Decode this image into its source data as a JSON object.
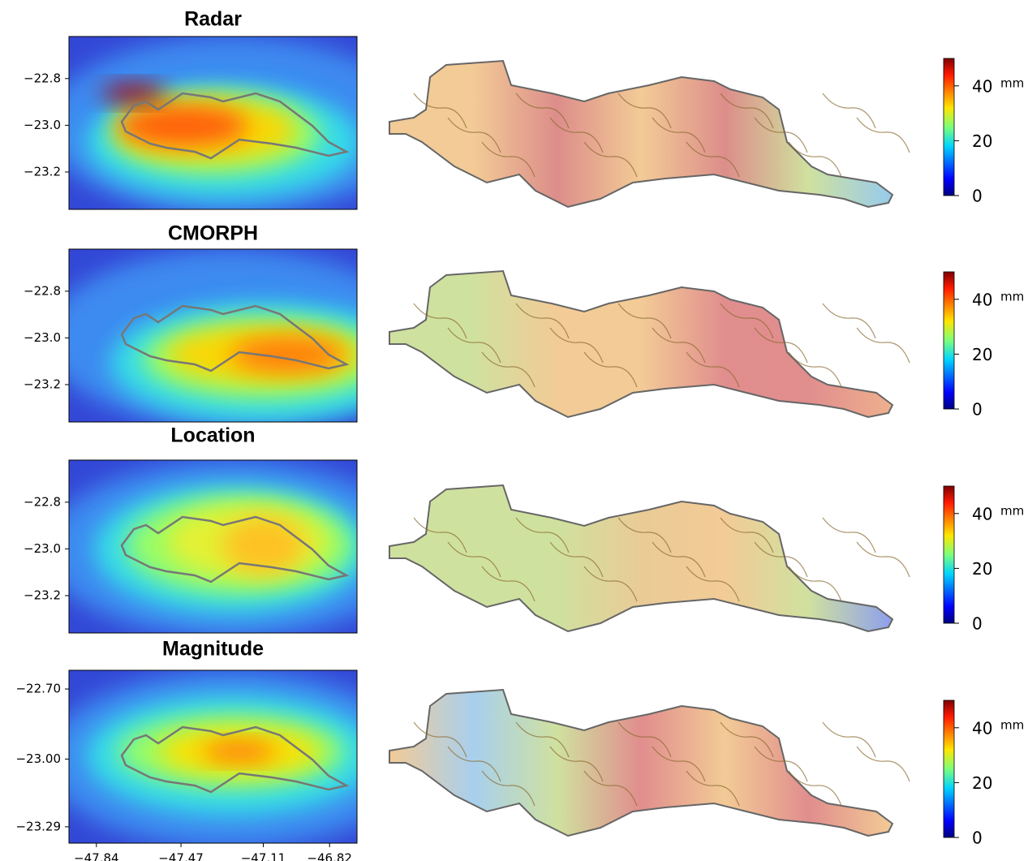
{
  "chart_data": [
    {
      "type": "heatmap",
      "title": "Radar",
      "xlim": [
        -47.96,
        -46.7
      ],
      "ylim": [
        -23.36,
        -22.62
      ],
      "yticks": [
        {
          "value": -22.8,
          "label": "−22.8"
        },
        {
          "value": -23.0,
          "label": "−23.0"
        },
        {
          "value": -23.2,
          "label": "−23.2"
        }
      ],
      "colorbar": {
        "lim": [
          0,
          50
        ],
        "ticks": [
          0,
          20,
          40
        ],
        "label": "mm"
      }
    },
    {
      "type": "heatmap",
      "title": "CMORPH",
      "xlim": [
        -47.96,
        -46.7
      ],
      "ylim": [
        -23.36,
        -22.62
      ],
      "yticks": [
        {
          "value": -22.8,
          "label": "−22.8"
        },
        {
          "value": -23.0,
          "label": "−23.0"
        },
        {
          "value": -23.2,
          "label": "−23.2"
        }
      ],
      "colorbar": {
        "lim": [
          0,
          50
        ],
        "ticks": [
          0,
          20,
          40
        ],
        "label": "mm"
      }
    },
    {
      "type": "heatmap",
      "title": "Location",
      "xlim": [
        -47.96,
        -46.7
      ],
      "ylim": [
        -23.36,
        -22.62
      ],
      "yticks": [
        {
          "value": -22.8,
          "label": "−22.8"
        },
        {
          "value": -23.0,
          "label": "−23.0"
        },
        {
          "value": -23.2,
          "label": "−23.2"
        }
      ],
      "colorbar": {
        "lim": [
          0,
          50
        ],
        "ticks": [
          0,
          20,
          40
        ],
        "label": "mm"
      }
    },
    {
      "type": "heatmap",
      "title": "Magnitude",
      "xlim": [
        -47.96,
        -46.7
      ],
      "ylim": [
        -23.36,
        -22.62
      ],
      "yticks": [
        {
          "value": -22.7,
          "label": "−22.70"
        },
        {
          "value": -23.0,
          "label": "−23.00"
        },
        {
          "value": -23.29,
          "label": "−23.29"
        }
      ],
      "xticks": [
        {
          "value": -47.84,
          "label": "−47.84"
        },
        {
          "value": -47.47,
          "label": "−47.47"
        },
        {
          "value": -47.11,
          "label": "−47.11"
        },
        {
          "value": -46.82,
          "label": "−46.82"
        }
      ],
      "colorbar": {
        "lim": [
          0,
          50
        ],
        "ticks": [
          0,
          20,
          40
        ],
        "label": "mm"
      }
    }
  ]
}
